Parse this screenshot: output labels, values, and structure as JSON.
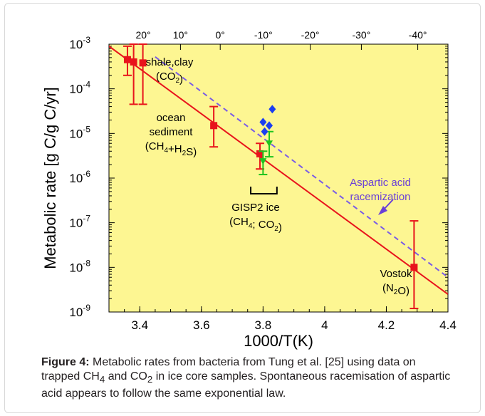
{
  "chart_data": {
    "type": "scatter",
    "xlabel": "1000/T(K)",
    "ylabel": "Metabolic rate [g C/g C/yr]",
    "x_ticks": [
      3.4,
      3.6,
      3.8,
      4,
      4.2,
      4.4
    ],
    "x_tick_labels": [
      "3.4",
      "3.6",
      "3.8",
      "4",
      "4.2",
      "4.4"
    ],
    "xlim": [
      3.3,
      4.4
    ],
    "y_scale": "log",
    "ylim": [
      1e-09,
      0.001
    ],
    "y_ticks": [
      {
        "value": 0.001,
        "base": "10",
        "exp": "-3"
      },
      {
        "value": 0.0001,
        "base": "10",
        "exp": "-4"
      },
      {
        "value": 1e-05,
        "base": "10",
        "exp": "-5"
      },
      {
        "value": 1e-06,
        "base": "10",
        "exp": "-6"
      },
      {
        "value": 1e-07,
        "base": "10",
        "exp": "-7"
      },
      {
        "value": 1e-08,
        "base": "10",
        "exp": "-8"
      },
      {
        "value": 1e-09,
        "base": "10",
        "exp": "-9"
      }
    ],
    "top_ticks": [
      {
        "x": 3.411,
        "label": "20°"
      },
      {
        "x": 3.532,
        "label": "10°"
      },
      {
        "x": 3.661,
        "label": "0°"
      },
      {
        "x": 3.801,
        "label": "-10°"
      },
      {
        "x": 3.953,
        "label": "-20°"
      },
      {
        "x": 4.119,
        "label": "-30°"
      },
      {
        "x": 4.302,
        "label": "-40°"
      }
    ],
    "plot_background": "#fdf692",
    "series": [
      {
        "color": "#e8141c",
        "marker": "square",
        "points": [
          {
            "x": 3.36,
            "y": 0.00045,
            "lo": 0.0002,
            "hi": 0.0009
          },
          {
            "x": 3.38,
            "y": 0.0004,
            "lo": 4.5e-05,
            "hi": 0.001
          },
          {
            "x": 3.41,
            "y": 0.00038,
            "lo": 4.5e-05,
            "hi": 0.001
          },
          {
            "x": 3.64,
            "y": 1.5e-05,
            "lo": 5e-06,
            "hi": 4e-05
          },
          {
            "x": 3.79,
            "y": 3.5e-06,
            "lo": 1.6e-06,
            "hi": 6e-06
          },
          {
            "x": 4.29,
            "y": 1e-08,
            "lo": 1.2e-09,
            "hi": 1.1e-07
          }
        ]
      },
      {
        "color": "#1fc41f",
        "marker": "triangle-down",
        "points": [
          {
            "x": 3.8,
            "y": 2.4e-06,
            "lo": 1.2e-06,
            "hi": 4e-06
          },
          {
            "x": 3.82,
            "y": 6e-06,
            "lo": 3e-06,
            "hi": 1.1e-05
          }
        ]
      },
      {
        "color": "#1c3ff0",
        "marker": "diamond",
        "points": [
          {
            "x": 3.8,
            "y": 1.8e-05
          },
          {
            "x": 3.805,
            "y": 1.1e-05
          },
          {
            "x": 3.82,
            "y": 1.5e-05
          },
          {
            "x": 3.83,
            "y": 3.5e-05
          }
        ]
      }
    ],
    "lines": [
      {
        "style": "solid",
        "color": "#e8141c",
        "x": [
          3.3,
          4.4
        ],
        "y": [
          0.0009,
          2.5e-09
        ]
      },
      {
        "style": "dashed",
        "color": "#7a5ce6",
        "x": [
          3.45,
          4.4
        ],
        "y": [
          0.00052,
          6e-09
        ]
      }
    ],
    "annotations": [
      {
        "id": "shale",
        "lines": [
          {
            "text": "shale,clay"
          },
          {
            "text": "(CO",
            "sub": "2",
            "after": ")"
          }
        ]
      },
      {
        "id": "ocean",
        "lines": [
          {
            "text": "ocean"
          },
          {
            "text": "sediment"
          },
          {
            "text": "(CH",
            "sub": "4",
            "mid": "+H",
            "sub2": "2",
            "after": "S)"
          }
        ]
      },
      {
        "id": "gisp",
        "lines": [
          {
            "text": "GISP2 ice"
          },
          {
            "text": "(CH",
            "sub": "4",
            "mid": "; CO",
            "sub2": "2",
            "after": ")"
          }
        ]
      },
      {
        "id": "vostok",
        "lines": [
          {
            "text": "Vostok"
          },
          {
            "text": "(N",
            "sub": "2",
            "after": "O)"
          }
        ]
      },
      {
        "id": "aspartic",
        "lines": [
          {
            "text": "Aspartic acid"
          },
          {
            "text": "racemization"
          }
        ]
      }
    ]
  },
  "caption": {
    "label": "Figure 4:",
    "text_part1": " Metabolic rates from bacteria from Tung et al. [25] using data on trapped CH",
    "sub1": "4",
    "text_part2": " and CO",
    "sub2": "2",
    "text_part3": " in ice core samples. Spontaneous racemisation of aspartic acid appears to follow the same exponential law."
  }
}
